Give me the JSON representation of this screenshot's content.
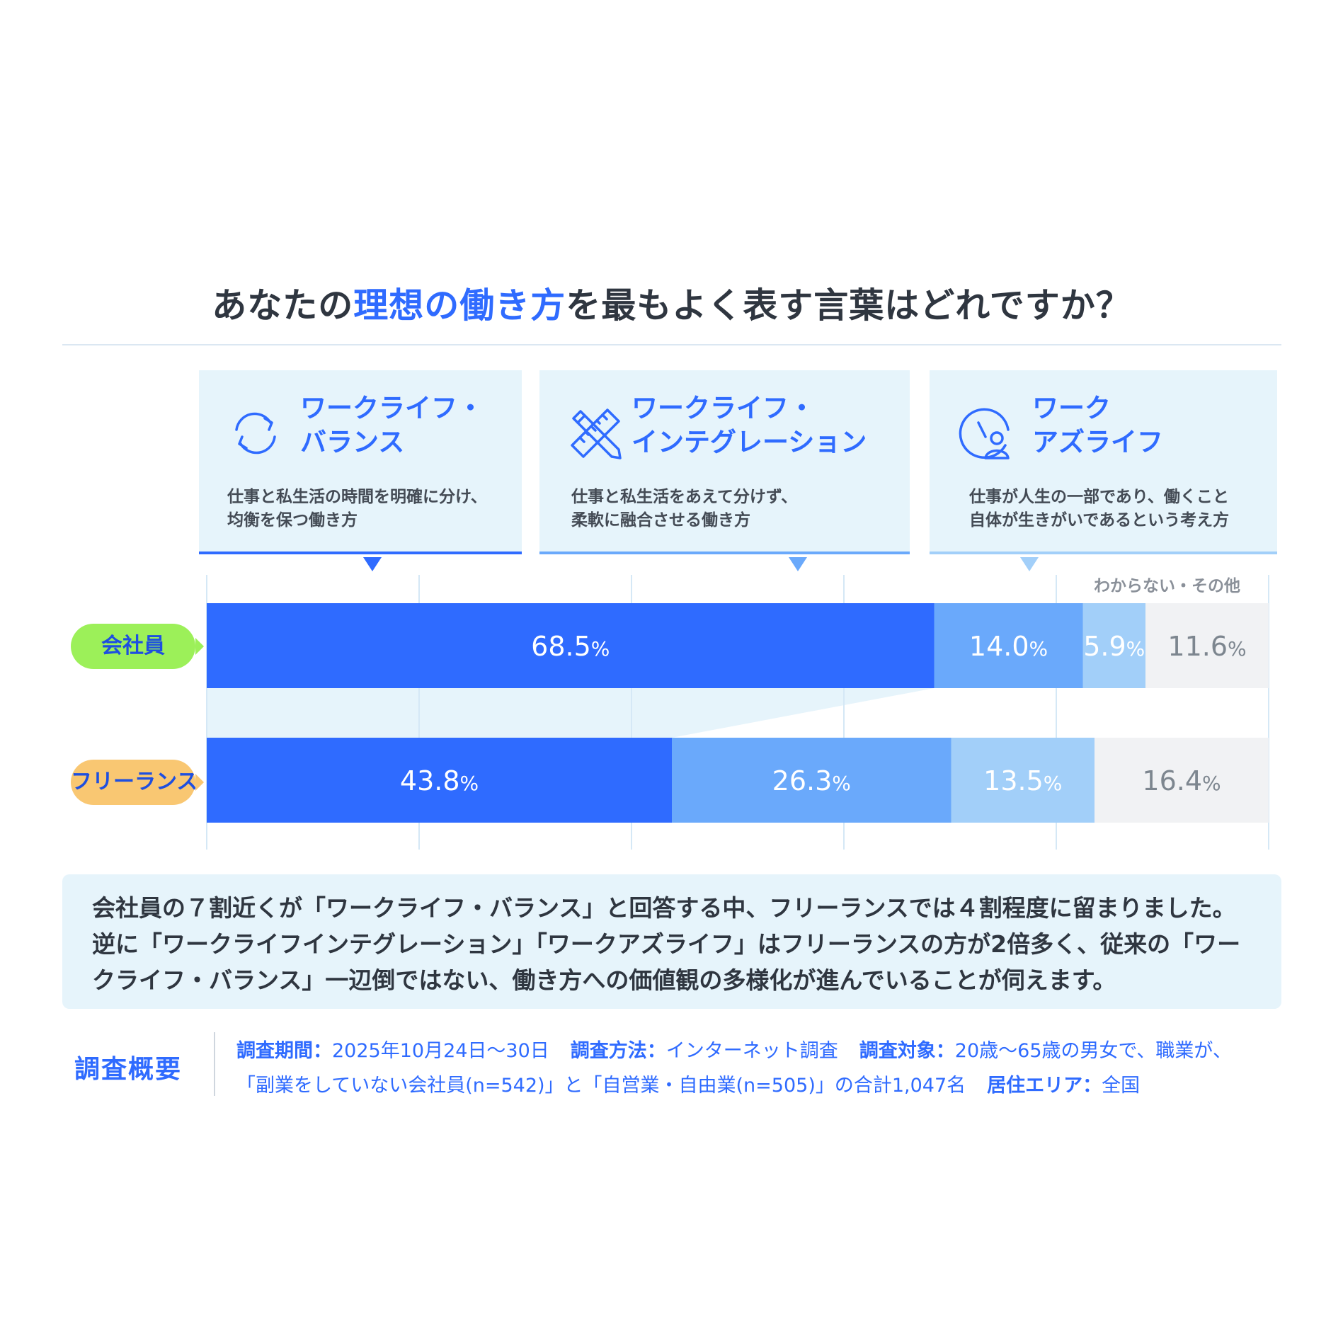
{
  "title": {
    "part1": "あなたの",
    "part2": "理想の働き方",
    "part3": "を最もよく表す言葉はどれですか？"
  },
  "cards": [
    {
      "title_line1": "ワークライフ・",
      "title_line2": "バランス",
      "desc_line1": "仕事と私生活の時間を明確に分け、",
      "desc_line2": "均衡を保つ働き方",
      "icon": "cycle-arrows-icon",
      "color": "#2f6bff"
    },
    {
      "title_line1": "ワークライフ・",
      "title_line2": "インテグレーション",
      "desc_line1": "仕事と私生活をあえて分けず、",
      "desc_line2": "柔軟に融合させる働き方",
      "icon": "pencil-ruler-icon",
      "color": "#6aa9fb"
    },
    {
      "title_line1": "ワーク",
      "title_line2": "アズライフ",
      "desc_line1": "仕事が人生の一部であり、働くこと",
      "desc_line2": "自体が生きがいであるという考え方",
      "icon": "clock-person-icon",
      "color": "#a2cff9"
    }
  ],
  "other_label": "わからない・その他",
  "chart_data": {
    "type": "bar",
    "orientation": "horizontal-stacked-100",
    "categories": [
      "会社員",
      "フリーランス"
    ],
    "series": [
      {
        "name": "ワークライフ・バランス",
        "values": [
          68.5,
          43.8
        ],
        "color": "#2f6bff"
      },
      {
        "name": "ワークライフ・インテグレーション",
        "values": [
          14.0,
          26.3
        ],
        "color": "#6aa9fb"
      },
      {
        "name": "ワーク アズライフ",
        "values": [
          5.9,
          13.5
        ],
        "color": "#a2cff9"
      },
      {
        "name": "わからない・その他",
        "values": [
          11.6,
          16.4
        ],
        "color": "#f1f2f4"
      }
    ],
    "value_labels": [
      [
        "68.5",
        "14.0",
        "5.9",
        "11.6"
      ],
      [
        "43.8",
        "26.3",
        "13.5",
        "16.4"
      ]
    ],
    "unit": "%",
    "xlim": [
      0,
      100
    ],
    "grid": true,
    "category_colors": [
      "#9cf059",
      "#f9c772"
    ]
  },
  "summary": {
    "line1": "会社員の７割近くが「ワークライフ・バランス」と回答する中、フリーランスでは４割程度に留まりました。",
    "line2": "逆に「ワークライフインテグレーション」「ワークアズライフ」はフリーランスの方が2倍多く、従来の「ワー",
    "line3": "クライフ・バランス」一辺倒ではない、働き方への価値観の多様化が進んでいることが伺えます。"
  },
  "survey": {
    "title": "調査概要",
    "period_label": "調査期間：",
    "period": "2025年10月24日～30日",
    "method_label": "調査方法：",
    "method": "インターネット調査",
    "target_label": "調査対象：",
    "target": "20歳～65歳の男女で、職業が、",
    "target_line2": "「副業をしていない会社員(n=542)」と「自営業・自由業(n=505)」の合計1,047名",
    "area_label": "居住エリア：",
    "area": "全国"
  }
}
